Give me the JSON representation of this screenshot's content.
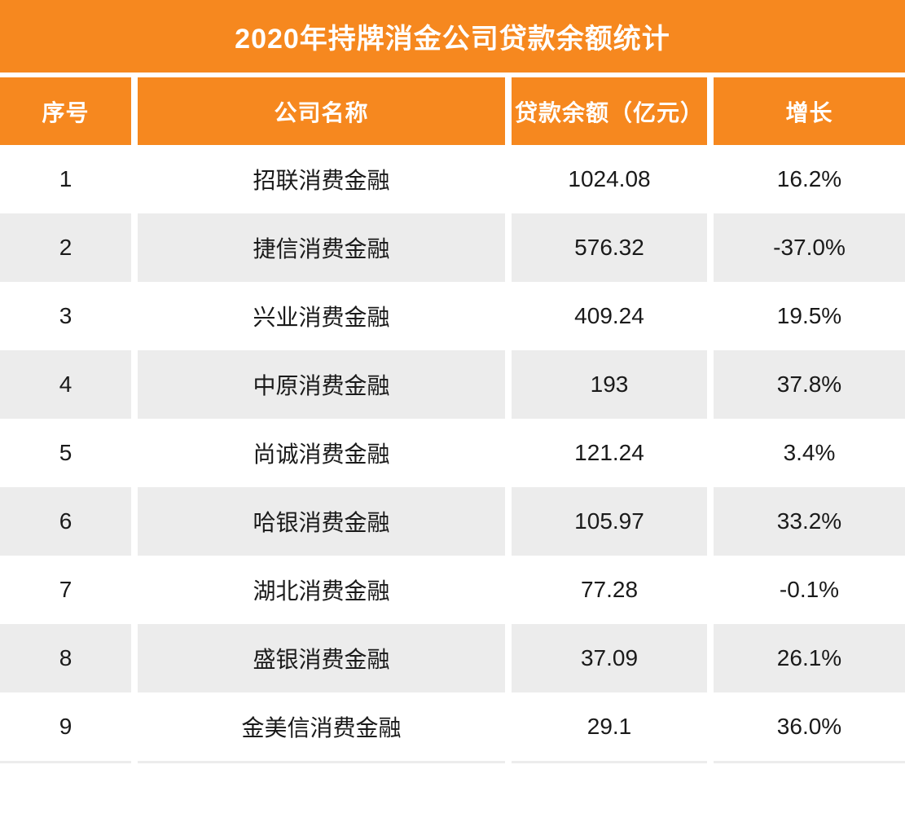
{
  "page": {
    "title": "2020年持牌消金公司贷款余额统计"
  },
  "colors": {
    "accent": "#F6881F",
    "alt_row": "#ECECEC",
    "header_text": "#FFFFFF",
    "body_text": "#1A1A1A"
  },
  "table": {
    "headers": [
      "序号",
      "公司名称",
      "贷款余额（亿元）",
      "增长"
    ],
    "rows": [
      {
        "cells": [
          "1",
          "招联消费金融",
          "1024.08",
          "16.2%"
        ]
      },
      {
        "cells": [
          "2",
          "捷信消费金融",
          "576.32",
          "-37.0%"
        ]
      },
      {
        "cells": [
          "3",
          "兴业消费金融",
          "409.24",
          "19.5%"
        ]
      },
      {
        "cells": [
          "4",
          "中原消费金融",
          "193",
          "37.8%"
        ]
      },
      {
        "cells": [
          "5",
          "尚诚消费金融",
          "121.24",
          "3.4%"
        ]
      },
      {
        "cells": [
          "6",
          "哈银消费金融",
          "105.97",
          "33.2%"
        ]
      },
      {
        "cells": [
          "7",
          "湖北消费金融",
          "77.28",
          "-0.1%"
        ]
      },
      {
        "cells": [
          "8",
          "盛银消费金融",
          "37.09",
          "26.1%"
        ]
      },
      {
        "cells": [
          "9",
          "金美信消费金融",
          "29.1",
          "36.0%"
        ]
      }
    ]
  },
  "chart_data": {
    "type": "table",
    "title": "2020年持牌消金公司贷款余额统计",
    "columns": [
      "序号",
      "公司名称",
      "贷款余额（亿元）",
      "增长"
    ],
    "rows": [
      [
        "1",
        "招联消费金融",
        "1024.08",
        "16.2%"
      ],
      [
        "2",
        "捷信消费金融",
        "576.32",
        "-37.0%"
      ],
      [
        "3",
        "兴业消费金融",
        "409.24",
        "19.5%"
      ],
      [
        "4",
        "中原消费金融",
        "193",
        "37.8%"
      ],
      [
        "5",
        "尚诚消费金融",
        "121.24",
        "3.4%"
      ],
      [
        "6",
        "哈银消费金融",
        "105.97",
        "33.2%"
      ],
      [
        "7",
        "湖北消费金融",
        "77.28",
        "-0.1%"
      ],
      [
        "8",
        "盛银消费金融",
        "37.09",
        "26.1%"
      ],
      [
        "9",
        "金美信消费金融",
        "29.1",
        "36.0%"
      ]
    ],
    "loan_balance_values": [
      1024.08,
      576.32,
      409.24,
      193,
      121.24,
      105.97,
      77.28,
      37.09,
      29.1
    ],
    "growth_percent_values": [
      16.2,
      -37.0,
      19.5,
      37.8,
      3.4,
      33.2,
      -0.1,
      26.1,
      36.0
    ]
  }
}
